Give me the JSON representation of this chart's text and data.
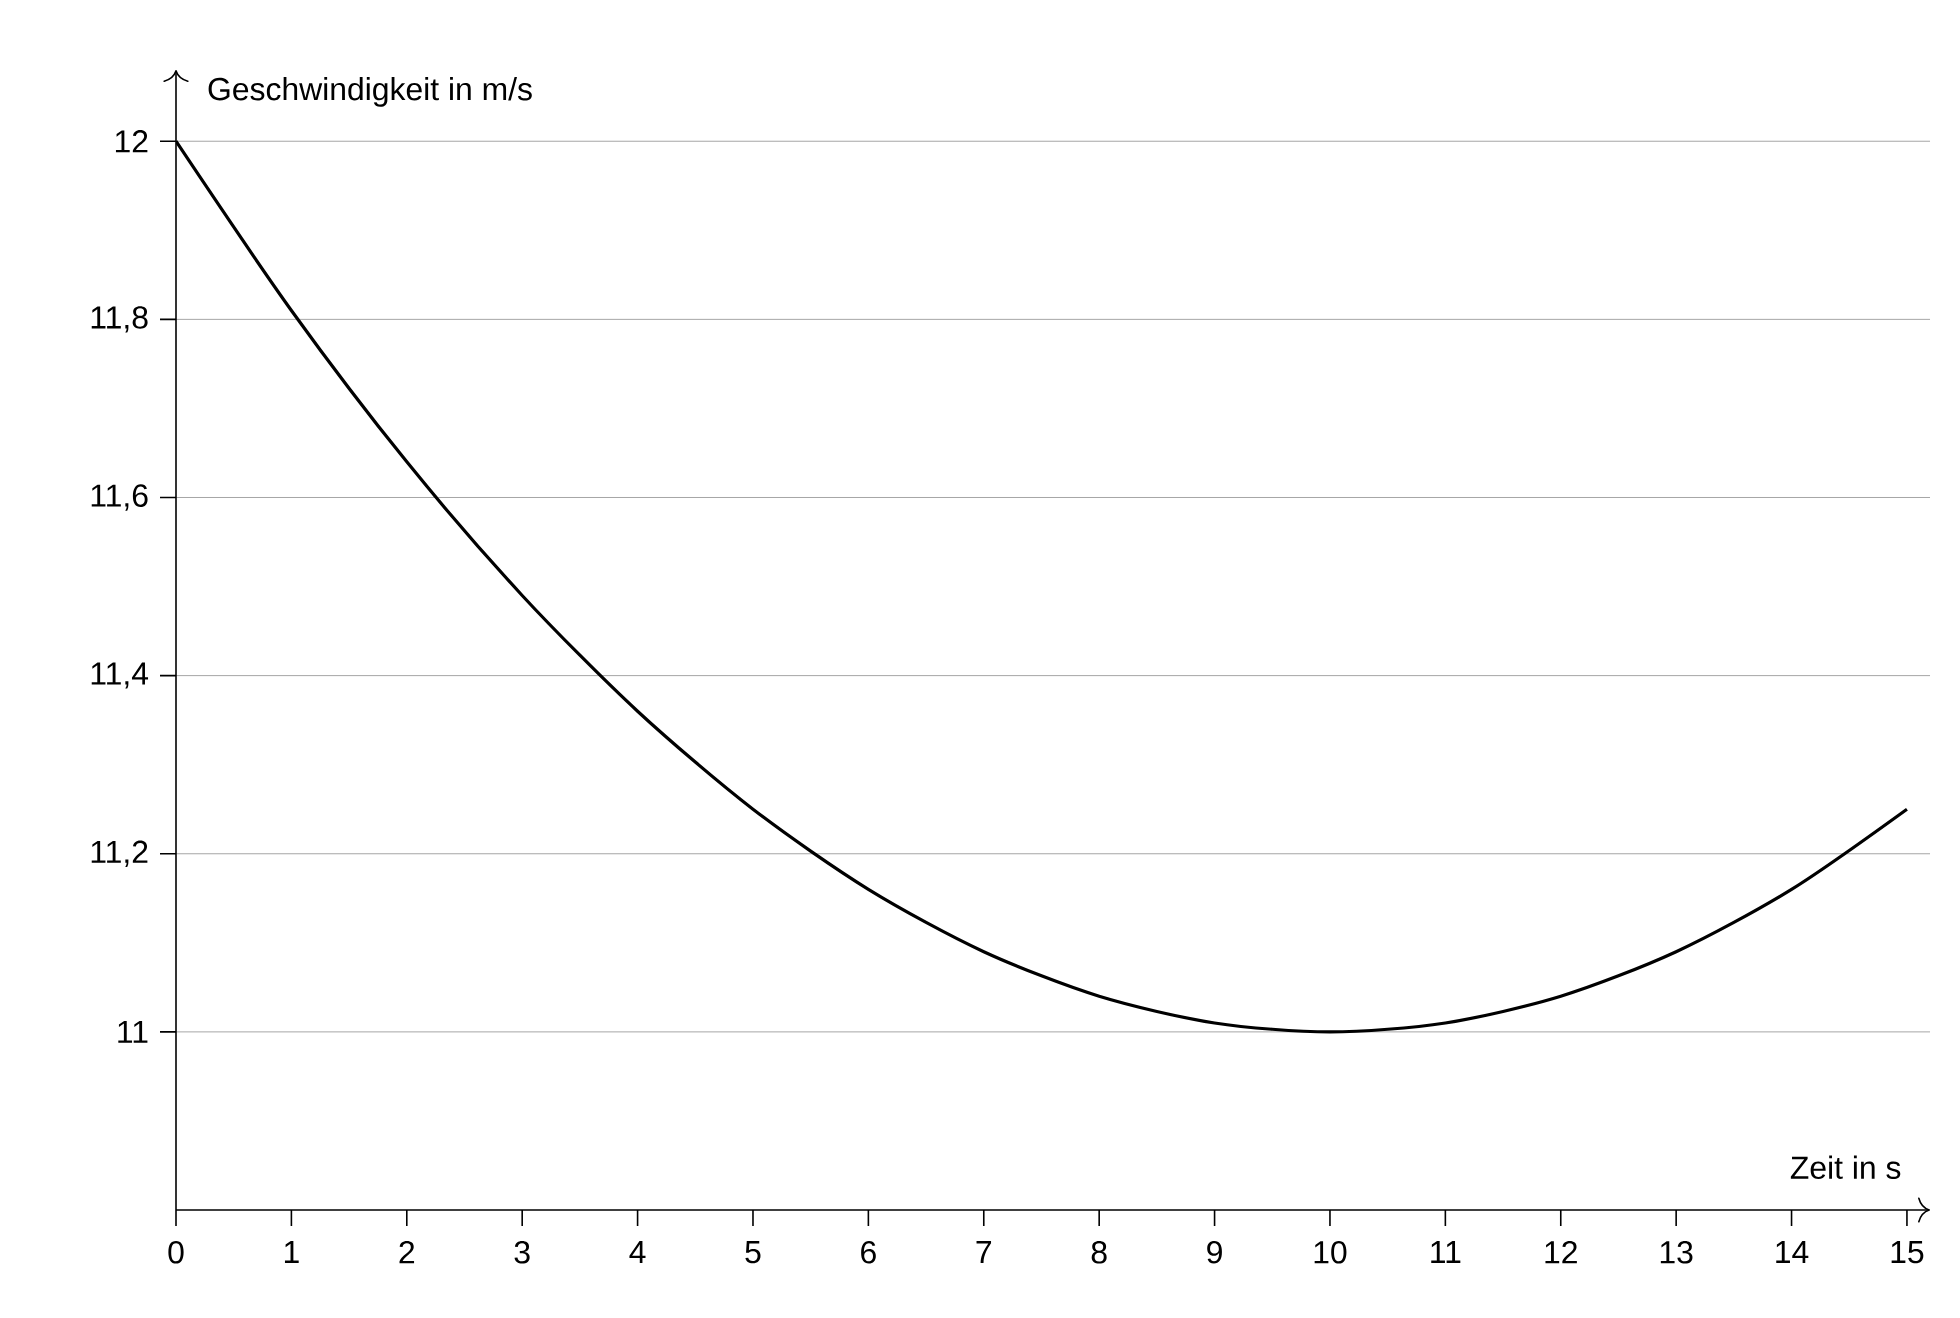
{
  "chart_data": {
    "type": "line",
    "xlabel": "Zeit in s",
    "ylabel": "Geschwindigkeit in m/s",
    "x": [
      0,
      1,
      2,
      3,
      4,
      5,
      6,
      7,
      8,
      9,
      10,
      11,
      12,
      13,
      14,
      15
    ],
    "series": [
      {
        "color": "#000000",
        "values": [
          12,
          11.81,
          11.64,
          11.49,
          11.36,
          11.25,
          11.16,
          11.09,
          11.04,
          11.01,
          11,
          11.01,
          11.04,
          11.09,
          11.16,
          11.25
        ]
      }
    ],
    "xlim": [
      0,
      15.2
    ],
    "ylim": [
      10.8,
      12.08
    ],
    "xticks": [
      0,
      1,
      2,
      3,
      4,
      5,
      6,
      7,
      8,
      9,
      10,
      11,
      12,
      13,
      14,
      15
    ],
    "yticks": [
      11,
      {
        "value": 11.2,
        "label": "11,2"
      },
      {
        "value": 11.4,
        "label": "11,4"
      },
      {
        "value": 11.6,
        "label": "11,6"
      },
      {
        "value": 11.8,
        "label": "11,8"
      },
      12
    ],
    "grid": "y",
    "marker": "none",
    "line_style": "solid"
  }
}
